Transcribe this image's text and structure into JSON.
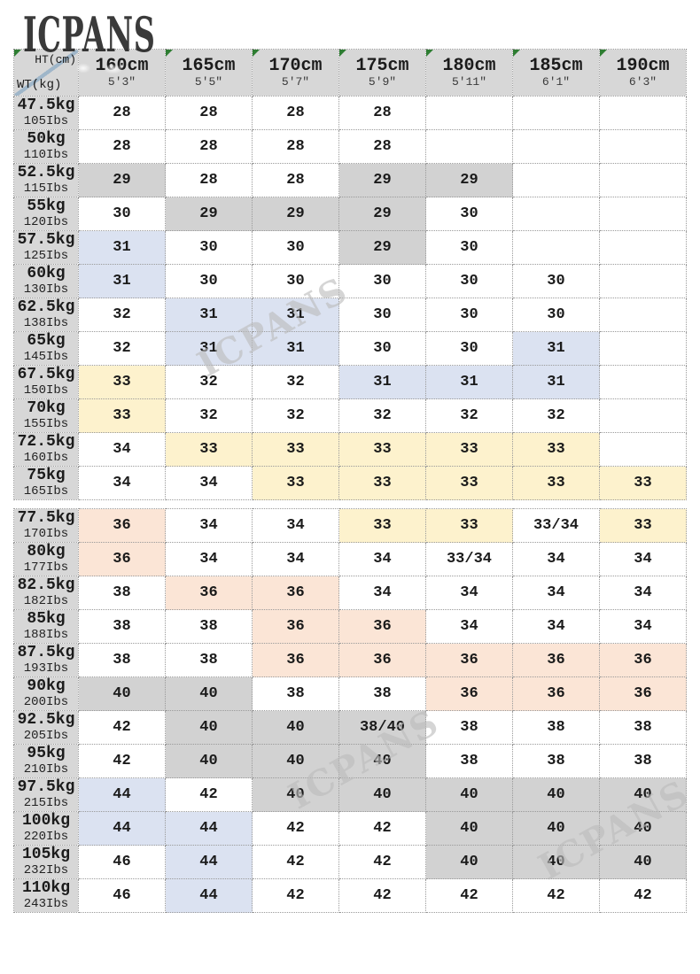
{
  "chart_data": {
    "type": "table",
    "header": {
      "corner_top": "HT(cm)",
      "corner_side": "WT(kg)",
      "corner_marker": true,
      "columns": [
        {
          "cm": "160cm",
          "ft": "5'3\"",
          "marker": false
        },
        {
          "cm": "165cm",
          "ft": "5'5\"",
          "marker": true
        },
        {
          "cm": "170cm",
          "ft": "5'7\"",
          "marker": true
        },
        {
          "cm": "175cm",
          "ft": "5'9\"",
          "marker": true
        },
        {
          "cm": "180cm",
          "ft": "5'11\"",
          "marker": true
        },
        {
          "cm": "185cm",
          "ft": "6'1\"",
          "marker": true
        },
        {
          "cm": "190cm",
          "ft": "6'3\"",
          "marker": true
        }
      ]
    },
    "sections": [
      {
        "rows": [
          {
            "kg": "47.5kg",
            "lbs": "105Ibs",
            "cells": [
              [
                "28",
                "w"
              ],
              [
                "28",
                "w"
              ],
              [
                "28",
                "w"
              ],
              [
                "28",
                "w"
              ],
              [
                "",
                "w"
              ],
              [
                "",
                "w"
              ],
              [
                "",
                "w"
              ]
            ]
          },
          {
            "kg": "50kg",
            "lbs": "110Ibs",
            "cells": [
              [
                "28",
                "w"
              ],
              [
                "28",
                "w"
              ],
              [
                "28",
                "w"
              ],
              [
                "28",
                "w"
              ],
              [
                "",
                "w"
              ],
              [
                "",
                "w"
              ],
              [
                "",
                "w"
              ]
            ]
          },
          {
            "kg": "52.5kg",
            "lbs": "115Ibs",
            "cells": [
              [
                "29",
                "g"
              ],
              [
                "28",
                "w"
              ],
              [
                "28",
                "w"
              ],
              [
                "29",
                "g"
              ],
              [
                "29",
                "g"
              ],
              [
                "",
                "w"
              ],
              [
                "",
                "w"
              ]
            ]
          },
          {
            "kg": "55kg",
            "lbs": "120Ibs",
            "cells": [
              [
                "30",
                "w"
              ],
              [
                "29",
                "g"
              ],
              [
                "29",
                "g"
              ],
              [
                "29",
                "g"
              ],
              [
                "30",
                "w"
              ],
              [
                "",
                "w"
              ],
              [
                "",
                "w"
              ]
            ]
          },
          {
            "kg": "57.5kg",
            "lbs": "125Ibs",
            "cells": [
              [
                "31",
                "b"
              ],
              [
                "30",
                "w"
              ],
              [
                "30",
                "w"
              ],
              [
                "29",
                "g"
              ],
              [
                "30",
                "w"
              ],
              [
                "",
                "w"
              ],
              [
                "",
                "w"
              ]
            ]
          },
          {
            "kg": "60kg",
            "lbs": "130Ibs",
            "cells": [
              [
                "31",
                "b"
              ],
              [
                "30",
                "w"
              ],
              [
                "30",
                "w"
              ],
              [
                "30",
                "w"
              ],
              [
                "30",
                "w"
              ],
              [
                "30",
                "w"
              ],
              [
                "",
                "w"
              ]
            ]
          },
          {
            "kg": "62.5kg",
            "lbs": "138Ibs",
            "cells": [
              [
                "32",
                "w"
              ],
              [
                "31",
                "b"
              ],
              [
                "31",
                "b"
              ],
              [
                "30",
                "w"
              ],
              [
                "30",
                "w"
              ],
              [
                "30",
                "w"
              ],
              [
                "",
                "w"
              ]
            ]
          },
          {
            "kg": "65kg",
            "lbs": "145Ibs",
            "cells": [
              [
                "32",
                "w"
              ],
              [
                "31",
                "b"
              ],
              [
                "31",
                "b"
              ],
              [
                "30",
                "w"
              ],
              [
                "30",
                "w"
              ],
              [
                "31",
                "b"
              ],
              [
                "",
                "w"
              ]
            ]
          },
          {
            "kg": "67.5kg",
            "lbs": "150Ibs",
            "cells": [
              [
                "33",
                "y"
              ],
              [
                "32",
                "w"
              ],
              [
                "32",
                "w"
              ],
              [
                "31",
                "b"
              ],
              [
                "31",
                "b"
              ],
              [
                "31",
                "b"
              ],
              [
                "",
                "w"
              ]
            ]
          },
          {
            "kg": "70kg",
            "lbs": "155Ibs",
            "cells": [
              [
                "33",
                "y"
              ],
              [
                "32",
                "w"
              ],
              [
                "32",
                "w"
              ],
              [
                "32",
                "w"
              ],
              [
                "32",
                "w"
              ],
              [
                "32",
                "w"
              ],
              [
                "",
                "w"
              ]
            ]
          },
          {
            "kg": "72.5kg",
            "lbs": "160Ibs",
            "cells": [
              [
                "34",
                "w"
              ],
              [
                "33",
                "y"
              ],
              [
                "33",
                "y"
              ],
              [
                "33",
                "y"
              ],
              [
                "33",
                "y"
              ],
              [
                "33",
                "y"
              ],
              [
                "",
                "w"
              ]
            ]
          },
          {
            "kg": "75kg",
            "lbs": "165Ibs",
            "cells": [
              [
                "34",
                "w"
              ],
              [
                "34",
                "w"
              ],
              [
                "33",
                "y"
              ],
              [
                "33",
                "y"
              ],
              [
                "33",
                "y"
              ],
              [
                "33",
                "y"
              ],
              [
                "33",
                "y"
              ]
            ]
          }
        ]
      },
      {
        "rows": [
          {
            "kg": "77.5kg",
            "lbs": "170Ibs",
            "cells": [
              [
                "36",
                "p"
              ],
              [
                "34",
                "w"
              ],
              [
                "34",
                "w"
              ],
              [
                "33",
                "y"
              ],
              [
                "33",
                "y"
              ],
              [
                "33/34",
                "w"
              ],
              [
                "33",
                "y"
              ]
            ]
          },
          {
            "kg": "80kg",
            "lbs": "177Ibs",
            "cells": [
              [
                "36",
                "p"
              ],
              [
                "34",
                "w"
              ],
              [
                "34",
                "w"
              ],
              [
                "34",
                "w"
              ],
              [
                "33/34",
                "w"
              ],
              [
                "34",
                "w"
              ],
              [
                "34",
                "w"
              ]
            ]
          },
          {
            "kg": "82.5kg",
            "lbs": "182Ibs",
            "cells": [
              [
                "38",
                "w"
              ],
              [
                "36",
                "p"
              ],
              [
                "36",
                "p"
              ],
              [
                "34",
                "w"
              ],
              [
                "34",
                "w"
              ],
              [
                "34",
                "w"
              ],
              [
                "34",
                "w"
              ]
            ]
          },
          {
            "kg": "85kg",
            "lbs": "188Ibs",
            "cells": [
              [
                "38",
                "w"
              ],
              [
                "38",
                "w"
              ],
              [
                "36",
                "p"
              ],
              [
                "36",
                "p"
              ],
              [
                "34",
                "w"
              ],
              [
                "34",
                "w"
              ],
              [
                "34",
                "w"
              ]
            ]
          },
          {
            "kg": "87.5kg",
            "lbs": "193Ibs",
            "cells": [
              [
                "38",
                "w"
              ],
              [
                "38",
                "w"
              ],
              [
                "36",
                "p"
              ],
              [
                "36",
                "p"
              ],
              [
                "36",
                "p"
              ],
              [
                "36",
                "p"
              ],
              [
                "36",
                "p"
              ]
            ]
          },
          {
            "kg": "90kg",
            "lbs": "200Ibs",
            "cells": [
              [
                "40",
                "g"
              ],
              [
                "40",
                "g"
              ],
              [
                "38",
                "w"
              ],
              [
                "38",
                "w"
              ],
              [
                "36",
                "p"
              ],
              [
                "36",
                "p"
              ],
              [
                "36",
                "p"
              ]
            ]
          },
          {
            "kg": "92.5kg",
            "lbs": "205Ibs",
            "cells": [
              [
                "42",
                "w"
              ],
              [
                "40",
                "g"
              ],
              [
                "40",
                "g"
              ],
              [
                "38/40",
                "g"
              ],
              [
                "38",
                "w"
              ],
              [
                "38",
                "w"
              ],
              [
                "38",
                "w"
              ]
            ]
          },
          {
            "kg": "95kg",
            "lbs": "210Ibs",
            "cells": [
              [
                "42",
                "w"
              ],
              [
                "40",
                "g"
              ],
              [
                "40",
                "g"
              ],
              [
                "40",
                "g"
              ],
              [
                "38",
                "w"
              ],
              [
                "38",
                "w"
              ],
              [
                "38",
                "w"
              ]
            ]
          },
          {
            "kg": "97.5kg",
            "lbs": "215Ibs",
            "cells": [
              [
                "44",
                "b"
              ],
              [
                "42",
                "w"
              ],
              [
                "40",
                "g"
              ],
              [
                "40",
                "g"
              ],
              [
                "40",
                "g"
              ],
              [
                "40",
                "g"
              ],
              [
                "40",
                "g"
              ]
            ]
          },
          {
            "kg": "100kg",
            "lbs": "220Ibs",
            "cells": [
              [
                "44",
                "b"
              ],
              [
                "44",
                "b"
              ],
              [
                "42",
                "w"
              ],
              [
                "42",
                "w"
              ],
              [
                "40",
                "g"
              ],
              [
                "40",
                "g"
              ],
              [
                "40",
                "g"
              ]
            ]
          },
          {
            "kg": "105kg",
            "lbs": "232Ibs",
            "cells": [
              [
                "46",
                "w"
              ],
              [
                "44",
                "b"
              ],
              [
                "42",
                "w"
              ],
              [
                "42",
                "w"
              ],
              [
                "40",
                "g"
              ],
              [
                "40",
                "g"
              ],
              [
                "40",
                "g"
              ]
            ]
          },
          {
            "kg": "110kg",
            "lbs": "243Ibs",
            "cells": [
              [
                "46",
                "w"
              ],
              [
                "44",
                "b"
              ],
              [
                "42",
                "w"
              ],
              [
                "42",
                "w"
              ],
              [
                "42",
                "w"
              ],
              [
                "42",
                "w"
              ],
              [
                "42",
                "w"
              ]
            ]
          }
        ]
      }
    ]
  },
  "watermarks": {
    "top": "ICPANS",
    "diagonal": [
      "ICPANS",
      "ICPANS",
      "ICPANS"
    ]
  },
  "colors": {
    "header_gray": "#d7d7d7",
    "cell_gray": "#d2d2d2",
    "cell_blue": "#dbe2f1",
    "cell_yellow": "#fdf2cd",
    "cell_pink": "#fbe5d6",
    "border_gray": "#9a9a9a",
    "marker_green": "#2e7d32",
    "diagonal_line_blue": "#9fb6c9",
    "watermark_dark": "#1f1f1f",
    "watermark_light": "#bcbcbc"
  }
}
